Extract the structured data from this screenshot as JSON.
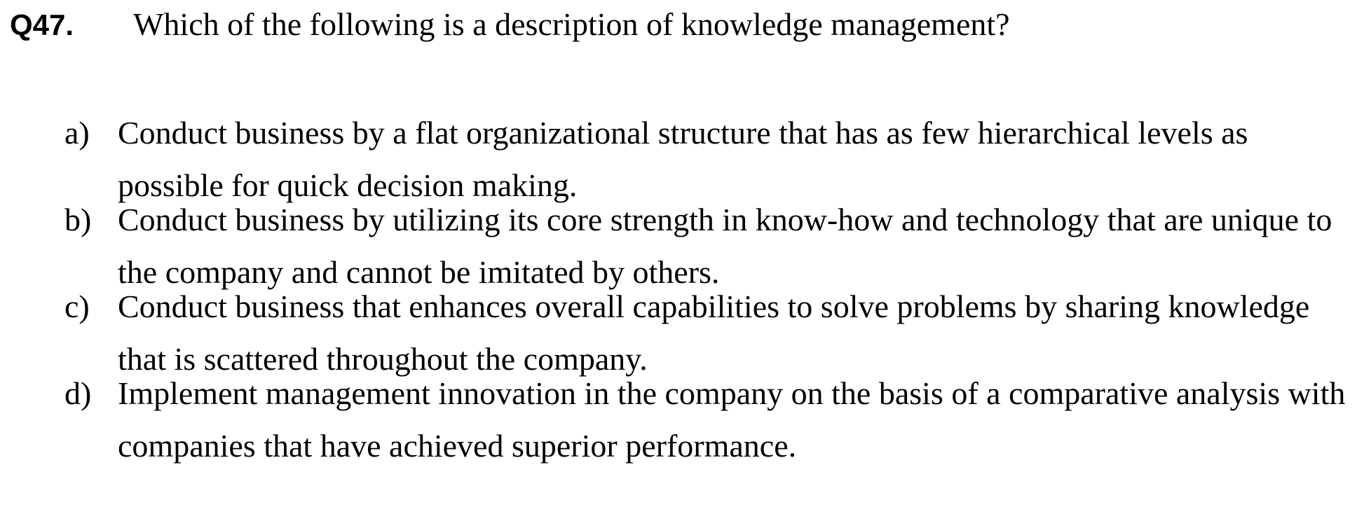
{
  "question": {
    "number": "Q47.",
    "text": "Which of the following is a description of knowledge management?"
  },
  "options": [
    {
      "letter": "a)",
      "text": "Conduct business by a flat organizational structure that has as few hierarchical levels as possible for quick decision making."
    },
    {
      "letter": "b)",
      "text": "Conduct business by utilizing its core strength in know-how and technology that are unique to the company and cannot be imitated by others."
    },
    {
      "letter": "c)",
      "text": "Conduct business that enhances overall capabilities to solve problems by sharing knowledge that is scattered throughout the company."
    },
    {
      "letter": "d)",
      "text": "Implement management innovation in the company on the basis of a comparative analysis with companies that have achieved superior performance."
    }
  ]
}
